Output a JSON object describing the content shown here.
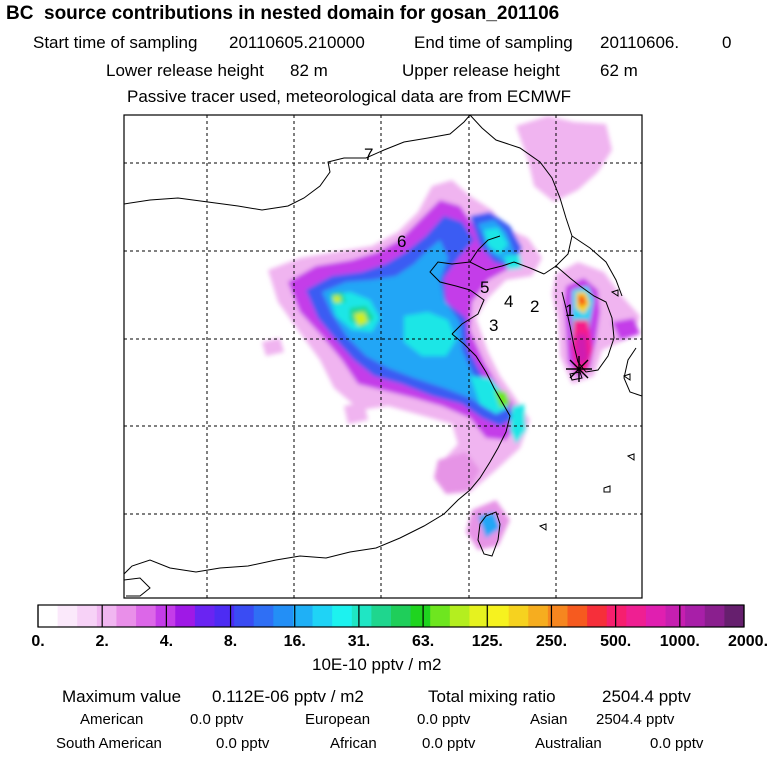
{
  "header": {
    "title": "BC  source contributions in nested domain for gosan_201106",
    "start_label": "Start time of sampling",
    "start_value": "20110605.210000",
    "end_label": "End time of sampling",
    "end_value": "20110606.",
    "end_suffix": "0",
    "lower_label": "Lower release height",
    "lower_value": "82 m",
    "upper_label": "Upper release height",
    "upper_value": "62 m",
    "tracer_note": "Passive tracer used, meteorological data are from ECMWF"
  },
  "colors": {
    "scale": [
      "#ffffff",
      "#fbe9fb",
      "#f7d2f7",
      "#f1b6f1",
      "#e98fe9",
      "#dc67e8",
      "#c43ce9",
      "#9f19e6",
      "#6a24f2",
      "#4d2cf3",
      "#3a4cf3",
      "#2f6ff5",
      "#238ff6",
      "#1fb0f6",
      "#1fd3f6",
      "#1df2ef",
      "#1fe6c4",
      "#1fd68e",
      "#1fce5a",
      "#1fd41f",
      "#6ee61f",
      "#b4ee1f",
      "#e6f21f",
      "#f6f21f",
      "#f6d21f",
      "#f6ad1f",
      "#f6861f",
      "#f65a1f",
      "#f62f3a",
      "#f61f6e",
      "#ef1f92",
      "#e01fb0",
      "#c61fb0",
      "#a81fa8",
      "#8a1f8e",
      "#661f6e"
    ],
    "map_lines": "#000000",
    "grid_lines": "#000000"
  },
  "chart_data": {
    "type": "heatmap",
    "title": "BC  source contributions in nested domain for gosan_201106",
    "colorbar": {
      "unit": "10E-10 pptv / m2",
      "tick_labels": [
        "0.",
        "2.",
        "4.",
        "8.",
        "16.",
        "31.",
        "63.",
        "125.",
        "250.",
        "500.",
        "1000.",
        "2000."
      ]
    },
    "region_labels": [
      "1",
      "2",
      "3",
      "4",
      "5",
      "6",
      "7"
    ],
    "receptor": "gosan",
    "legend_position": "bottom"
  },
  "footer": {
    "max_label": "Maximum value",
    "max_value": "0.112E-06 pptv / m2",
    "total_label": "Total mixing ratio",
    "total_value": "2504.4 pptv",
    "regions": [
      {
        "name": "American",
        "value": "0.0 pptv"
      },
      {
        "name": "European",
        "value": "0.0 pptv"
      },
      {
        "name": "Asian",
        "value": "2504.4 pptv"
      },
      {
        "name": "South American",
        "value": "0.0 pptv"
      },
      {
        "name": "African",
        "value": "0.0 pptv"
      },
      {
        "name": "Australian",
        "value": "0.0 pptv"
      }
    ]
  }
}
